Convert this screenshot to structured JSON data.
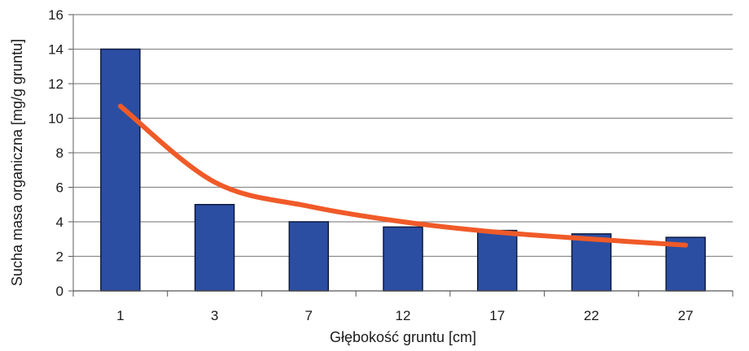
{
  "chart_data": {
    "type": "bar",
    "title": "",
    "xlabel": "Głębokość gruntu [cm]",
    "ylabel": "Sucha masa organiczna [mg/g gruntu]",
    "categories": [
      "1",
      "3",
      "7",
      "12",
      "17",
      "22",
      "27"
    ],
    "series": [
      {
        "values": [
          14,
          5,
          4,
          3.7,
          3.5,
          3.3,
          3.1
        ]
      }
    ],
    "trendline": {
      "type": "power",
      "values": [
        10.7,
        6.3,
        4.9,
        4.0,
        3.4,
        3.0,
        2.65
      ]
    },
    "ylim": [
      0,
      16
    ],
    "yticks": [
      0,
      2,
      4,
      6,
      8,
      10,
      12,
      14,
      16
    ],
    "grid": true,
    "legend": "none",
    "colors": {
      "bar_fill": "#2b4ea2",
      "bar_stroke": "#0d1a40",
      "trendline": "#f05a28",
      "grid": "#8c8c8c"
    }
  }
}
